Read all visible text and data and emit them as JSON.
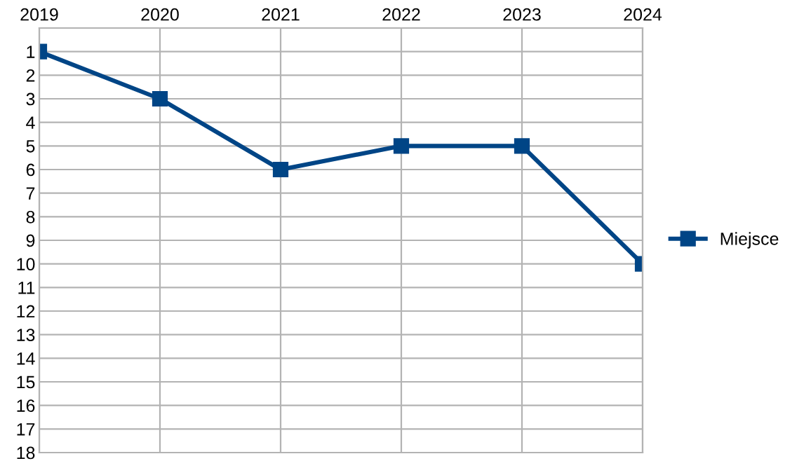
{
  "chart_data": {
    "type": "line",
    "categories": [
      "2019",
      "2020",
      "2021",
      "2022",
      "2023",
      "2024"
    ],
    "series": [
      {
        "name": "Miejsce",
        "color": "#004586",
        "values": [
          1,
          3,
          6,
          5,
          5,
          10
        ]
      }
    ],
    "ylim": [
      18,
      0
    ],
    "yticks": [
      1,
      2,
      3,
      4,
      5,
      6,
      7,
      8,
      9,
      10,
      11,
      12,
      13,
      14,
      15,
      16,
      17,
      18
    ],
    "grid": true,
    "legend": "right",
    "marker": "square",
    "line_style": "solid"
  }
}
